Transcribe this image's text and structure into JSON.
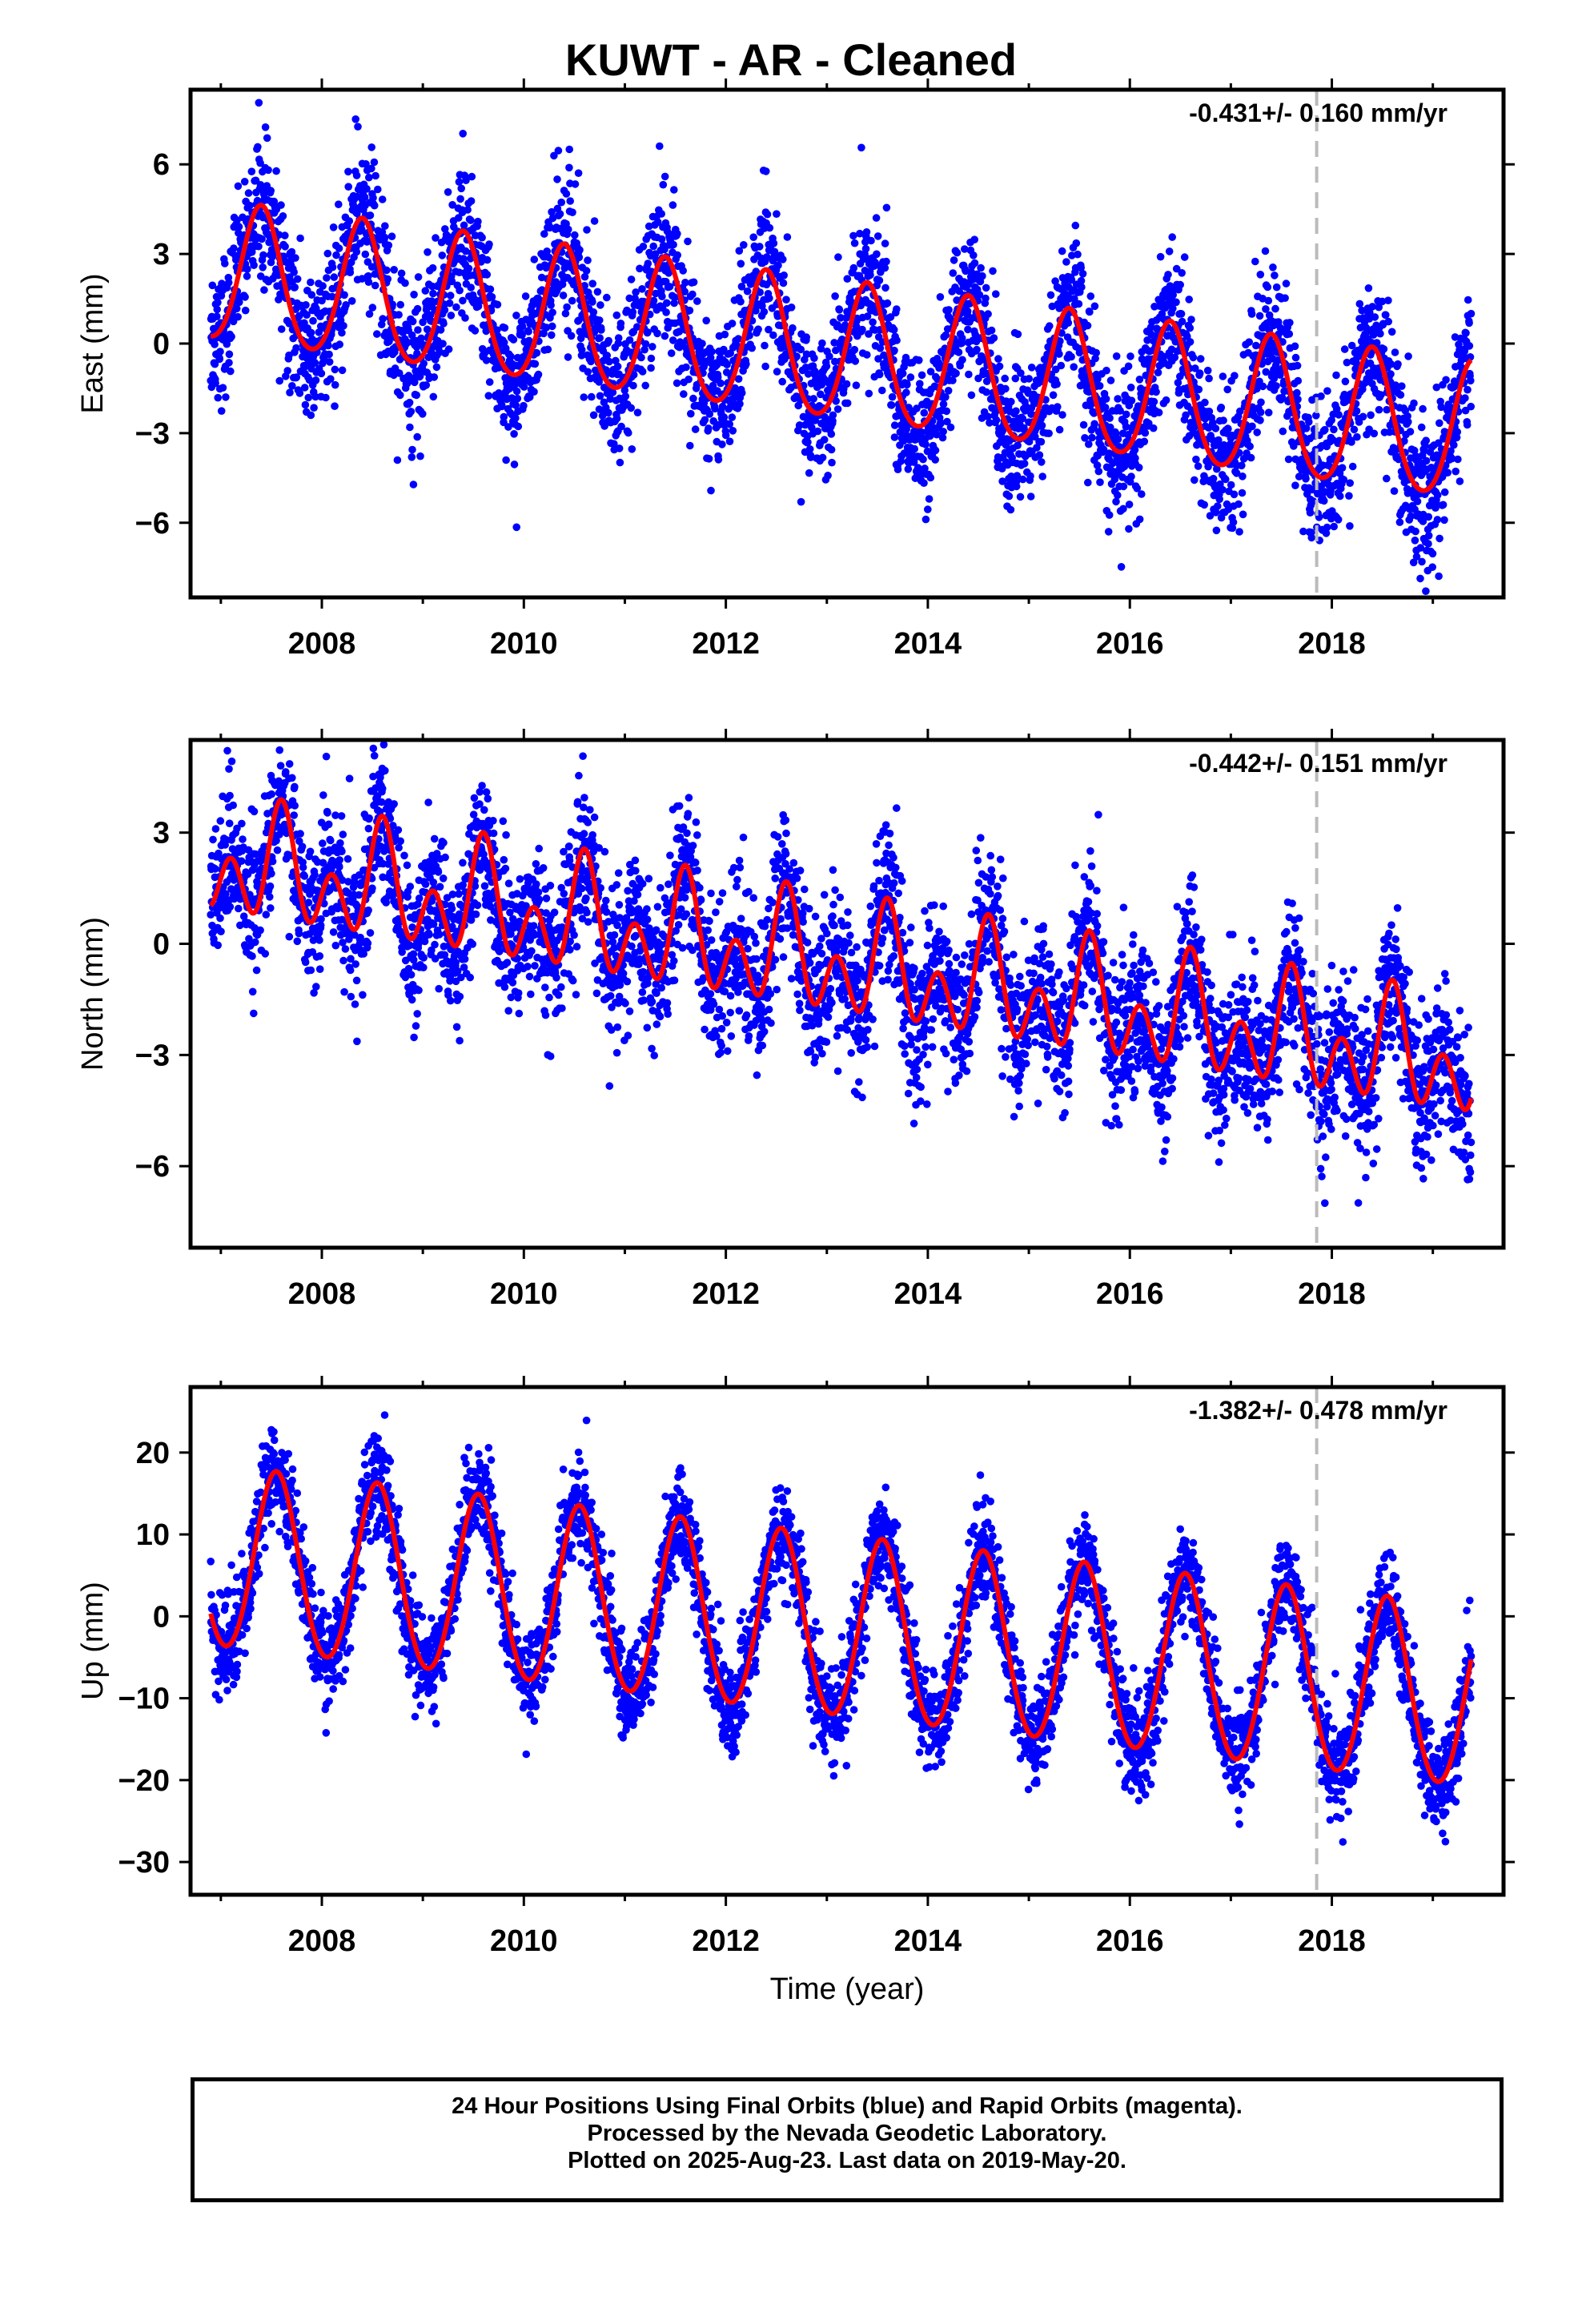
{
  "title": "KUWT  - AR - Cleaned",
  "caption": [
    "24 Hour Positions Using Final Orbits (blue) and Rapid Orbits (magenta).",
    "Processed by the Nevada Geodetic Laboratory.",
    "Plotted on 2025-Aug-23. Last data on 2019-May-20."
  ],
  "colors": {
    "observations": "#0000ff",
    "model": "#ff0000",
    "marker_line": "#bbbbbb",
    "frame": "#000000"
  },
  "chart_data": [
    {
      "type": "scatter",
      "ylabel": "East (mm)",
      "xlabel": "",
      "rate_text": "-0.431+/- 0.160 mm/yr",
      "xlim": [
        2006.7,
        2019.7
      ],
      "ylim": [
        -8.5,
        8.5
      ],
      "x_ticks": [
        2008,
        2010,
        2012,
        2014,
        2016,
        2018
      ],
      "y_ticks": [
        -6,
        -3,
        0,
        3,
        6
      ],
      "vertical_marker_x": 2017.85,
      "data_start": 2006.9,
      "data_end": 2019.38,
      "series": [
        {
          "name": "Final Orbits",
          "kind": "points",
          "model": {
            "intercept": 2.3,
            "rate": -0.431,
            "annual_amplitude": 2.3,
            "annual_peak": 0.4,
            "semiannual_amplitude": 0.25,
            "noise_sd": 1.2
          }
        },
        {
          "name": "Model fit",
          "kind": "line"
        }
      ]
    },
    {
      "type": "scatter",
      "ylabel": "North (mm)",
      "xlabel": "",
      "rate_text": "-0.442+/- 0.151 mm/yr",
      "xlim": [
        2006.7,
        2019.7
      ],
      "ylim": [
        -8.2,
        5.5
      ],
      "x_ticks": [
        2008,
        2010,
        2012,
        2014,
        2016,
        2018
      ],
      "y_ticks": [
        -6,
        -3,
        0,
        3
      ],
      "vertical_marker_x": 2017.85,
      "data_start": 2006.9,
      "data_end": 2019.38,
      "series": [
        {
          "name": "Final Orbits",
          "kind": "points",
          "model": {
            "intercept": 2.2,
            "rate": -0.442,
            "annual_amplitude": 0.9,
            "annual_peak": 0.6,
            "semiannual_amplitude": 1.1,
            "noise_sd": 1.0
          }
        },
        {
          "name": "Model fit",
          "kind": "line"
        }
      ]
    },
    {
      "type": "scatter",
      "ylabel": "Up (mm)",
      "xlabel": "Time (year)",
      "rate_text": "-1.382+/- 0.478 mm/yr",
      "xlim": [
        2006.7,
        2019.7
      ],
      "ylim": [
        -34,
        28
      ],
      "x_ticks": [
        2008,
        2010,
        2012,
        2014,
        2016,
        2018
      ],
      "y_ticks": [
        -30,
        -20,
        -10,
        0,
        10,
        20
      ],
      "vertical_marker_x": 2017.85,
      "data_start": 2006.9,
      "data_end": 2019.38,
      "series": [
        {
          "name": "Final Orbits",
          "kind": "points",
          "model": {
            "intercept": 7.0,
            "rate": -1.382,
            "annual_amplitude": 11.0,
            "annual_peak": 0.55,
            "semiannual_amplitude": 0.6,
            "noise_sd": 3.0
          }
        },
        {
          "name": "Model fit",
          "kind": "line"
        }
      ]
    }
  ]
}
